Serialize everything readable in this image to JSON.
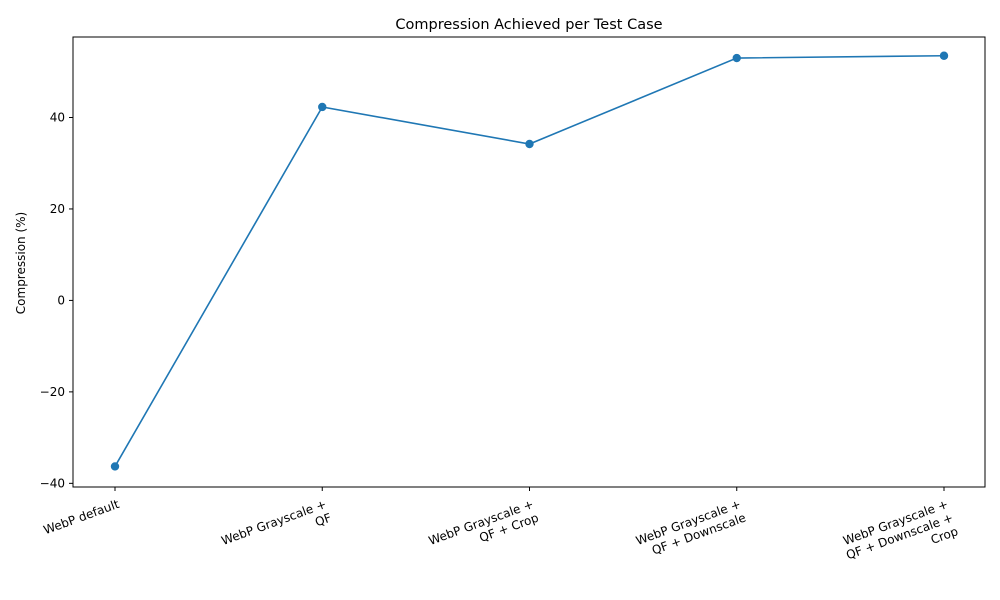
{
  "chart_data": {
    "type": "line",
    "title": "Compression Achieved per Test Case",
    "xlabel": "",
    "ylabel": "Compression (%)",
    "categories": [
      [
        "WebP default"
      ],
      [
        "WebP Grayscale +",
        "QF"
      ],
      [
        "WebP Grayscale +",
        "QF + Crop"
      ],
      [
        "WebP Grayscale +",
        "QF + Downscale"
      ],
      [
        "WebP Grayscale +",
        "QF + Downscale +",
        "Crop"
      ]
    ],
    "series": [
      {
        "values": [
          -36.3,
          42.3,
          34.2,
          53.0,
          53.5
        ],
        "color": "#1f77b4"
      }
    ],
    "ylim": [
      -40.8,
      57.6
    ],
    "yticks": [
      -40,
      -20,
      0,
      20,
      40
    ],
    "ytick_labels": [
      "−40",
      "−20",
      "0",
      "20",
      "40"
    ],
    "grid": false,
    "markers": "circle"
  }
}
